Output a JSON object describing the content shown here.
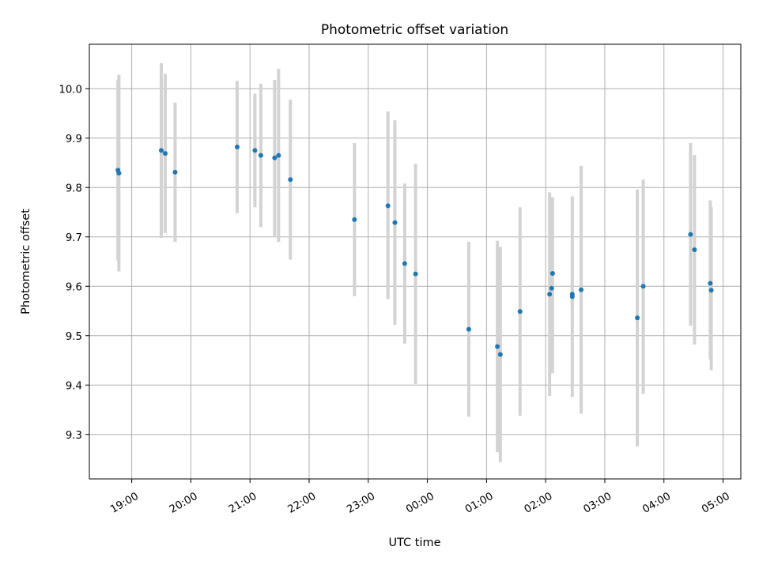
{
  "chart_data": {
    "type": "scatter",
    "title": "Photometric offset variation",
    "xlabel": "UTC time",
    "ylabel": "Photometric offset",
    "grid": true,
    "x_start": "18:40",
    "x_ticks": [
      "19:00",
      "20:00",
      "21:00",
      "22:00",
      "23:00",
      "00:00",
      "01:00",
      "02:00",
      "03:00",
      "04:00",
      "05:00"
    ],
    "y_ticks": [
      "9.3",
      "9.4",
      "9.5",
      "9.6",
      "9.7",
      "9.8",
      "9.9",
      "10.0"
    ],
    "xlim": [
      "18:17",
      "05:18"
    ],
    "ylim": [
      9.21,
      10.09
    ],
    "point_color": "#1f77b4",
    "errorbar_color": "#d3d3d3",
    "points": [
      {
        "x": "18:46",
        "y": 9.835,
        "lo": 9.652,
        "hi": 10.018
      },
      {
        "x": "18:47",
        "y": 9.829,
        "lo": 9.63,
        "hi": 10.028
      },
      {
        "x": "19:30",
        "y": 9.875,
        "lo": 9.698,
        "hi": 10.052
      },
      {
        "x": "19:34",
        "y": 9.869,
        "lo": 9.708,
        "hi": 10.03
      },
      {
        "x": "19:44",
        "y": 9.831,
        "lo": 9.69,
        "hi": 9.972
      },
      {
        "x": "20:47",
        "y": 9.882,
        "lo": 9.748,
        "hi": 10.016
      },
      {
        "x": "21:05",
        "y": 9.875,
        "lo": 9.76,
        "hi": 9.99
      },
      {
        "x": "21:11",
        "y": 9.865,
        "lo": 9.72,
        "hi": 10.01
      },
      {
        "x": "21:25",
        "y": 9.86,
        "lo": 9.702,
        "hi": 10.018
      },
      {
        "x": "21:29",
        "y": 9.865,
        "lo": 9.69,
        "hi": 10.04
      },
      {
        "x": "21:41",
        "y": 9.816,
        "lo": 9.654,
        "hi": 9.978
      },
      {
        "x": "22:46",
        "y": 9.735,
        "lo": 9.58,
        "hi": 9.89
      },
      {
        "x": "23:20",
        "y": 9.763,
        "lo": 9.574,
        "hi": 9.954
      },
      {
        "x": "23:27",
        "y": 9.729,
        "lo": 9.522,
        "hi": 9.936
      },
      {
        "x": "23:37",
        "y": 9.646,
        "lo": 9.484,
        "hi": 9.808
      },
      {
        "x": "23:48",
        "y": 9.625,
        "lo": 9.402,
        "hi": 9.848
      },
      {
        "x": "00:42",
        "y": 9.513,
        "lo": 9.336,
        "hi": 9.69
      },
      {
        "x": "01:11",
        "y": 9.478,
        "lo": 9.264,
        "hi": 9.692
      },
      {
        "x": "01:14",
        "y": 9.462,
        "lo": 9.244,
        "hi": 9.68
      },
      {
        "x": "01:34",
        "y": 9.549,
        "lo": 9.338,
        "hi": 9.76
      },
      {
        "x": "02:04",
        "y": 9.584,
        "lo": 9.378,
        "hi": 9.79
      },
      {
        "x": "02:06",
        "y": 9.596,
        "lo": 9.472,
        "hi": 9.72
      },
      {
        "x": "02:07",
        "y": 9.626,
        "lo": 9.424,
        "hi": 9.78
      },
      {
        "x": "02:27",
        "y": 9.584,
        "lo": 9.376,
        "hi": 9.782
      },
      {
        "x": "02:27",
        "y": 9.579,
        "lo": 9.56,
        "hi": 9.598
      },
      {
        "x": "02:36",
        "y": 9.593,
        "lo": 9.342,
        "hi": 9.844
      },
      {
        "x": "03:33",
        "y": 9.536,
        "lo": 9.276,
        "hi": 9.796
      },
      {
        "x": "03:39",
        "y": 9.6,
        "lo": 9.382,
        "hi": 9.816
      },
      {
        "x": "04:27",
        "y": 9.705,
        "lo": 9.52,
        "hi": 9.89
      },
      {
        "x": "04:31",
        "y": 9.674,
        "lo": 9.482,
        "hi": 9.866
      },
      {
        "x": "04:47",
        "y": 9.606,
        "lo": 9.452,
        "hi": 9.774
      },
      {
        "x": "04:48",
        "y": 9.592,
        "lo": 9.43,
        "hi": 9.76
      }
    ]
  }
}
